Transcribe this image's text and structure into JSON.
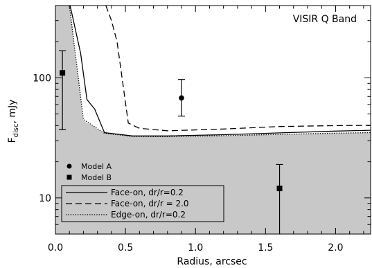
{
  "chart_data": {
    "type": "line",
    "title": "VISIR Q Band",
    "xlabel": "Radius, arcsec",
    "ylabel_main": "F",
    "ylabel_sub": "disc",
    "ylabel_unit": ", mJy",
    "xlim": [
      0.0,
      2.25
    ],
    "ylim": [
      5,
      400
    ],
    "yscale": "log",
    "xticks": [
      0.0,
      0.5,
      1.0,
      1.5,
      2.0
    ],
    "xtick_labels": [
      "0.0",
      "0.5",
      "1.0",
      "1.5",
      "2.0"
    ],
    "yticks": [
      10,
      100
    ],
    "ytick_labels": [
      "10",
      "100"
    ],
    "grid": false,
    "shaded_region": {
      "boundary": [
        [
          0.0,
          400
        ],
        [
          0.1,
          400
        ],
        [
          0.2,
          44
        ],
        [
          0.35,
          34.5
        ],
        [
          0.55,
          32.5
        ],
        [
          0.8,
          32.4
        ],
        [
          1.2,
          33.0
        ],
        [
          1.6,
          33.8
        ],
        [
          2.0,
          34.6
        ],
        [
          2.25,
          35.0
        ]
      ],
      "color": "#c8c8c8"
    },
    "series": [
      {
        "name": "Face-on, dr/r=0.2",
        "style": "solid",
        "points": [
          [
            0.105,
            400
          ],
          [
            0.18,
            160
          ],
          [
            0.225,
            66
          ],
          [
            0.28,
            55
          ],
          [
            0.35,
            35
          ],
          [
            0.55,
            32.8
          ],
          [
            0.8,
            32.8
          ],
          [
            1.2,
            33.6
          ],
          [
            1.6,
            34.8
          ],
          [
            2.0,
            36.0
          ],
          [
            2.25,
            36.6
          ]
        ]
      },
      {
        "name": "Face-on, dr/r = 2.0",
        "style": "dashed",
        "points": [
          [
            0.36,
            400
          ],
          [
            0.4,
            300
          ],
          [
            0.44,
            200
          ],
          [
            0.52,
            42
          ],
          [
            0.6,
            38
          ],
          [
            0.8,
            36.2
          ],
          [
            1.2,
            37.5
          ],
          [
            1.6,
            39.3
          ],
          [
            2.0,
            40.0
          ],
          [
            2.25,
            40.2
          ]
        ]
      },
      {
        "name": "Edge-on, dr/r=0.2",
        "style": "dotted",
        "points": [
          [
            0.1,
            400
          ],
          [
            0.2,
            45
          ],
          [
            0.35,
            34.5
          ],
          [
            0.55,
            32.5
          ],
          [
            0.8,
            32.4
          ],
          [
            1.2,
            33.0
          ],
          [
            1.6,
            33.8
          ],
          [
            2.0,
            34.6
          ],
          [
            2.25,
            35.0
          ]
        ]
      }
    ],
    "data_points": [
      {
        "group": "Model B",
        "marker": "square",
        "x": 0.05,
        "y": 110,
        "ylow": 37,
        "yhigh": 168
      },
      {
        "group": "Model A",
        "marker": "circle",
        "x": 0.9,
        "y": 68,
        "ylow": 48,
        "yhigh": 97
      },
      {
        "group": "Model B",
        "marker": "square",
        "x": 1.6,
        "y": 12,
        "ylow": 5,
        "yhigh": 19
      }
    ],
    "legend_markers": [
      {
        "marker": "circle",
        "label": "Model A"
      },
      {
        "marker": "square",
        "label": "Model B"
      }
    ],
    "legend_lines": [
      {
        "style": "solid",
        "label": "Face-on, dr/r=0.2"
      },
      {
        "style": "dashed",
        "label": "Face-on, dr/r = 2.0"
      },
      {
        "style": "dotted",
        "label": "Edge-on, dr/r=0.2"
      }
    ],
    "legend_position": "bottom-left",
    "colors": {
      "background": "#ffffff",
      "shade": "#c8c8c8",
      "ink": "#000000"
    }
  }
}
